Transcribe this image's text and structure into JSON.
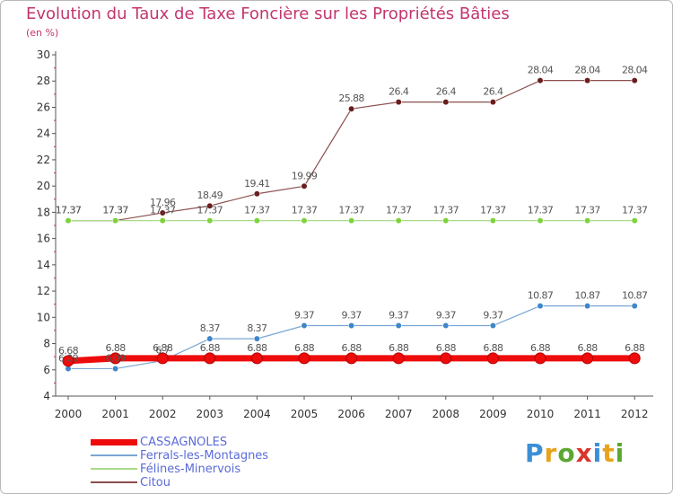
{
  "header": {
    "title": "Evolution du Taux de Taxe Foncière sur les Propriétés Bâties",
    "subtitle": "(en %)"
  },
  "logo": {
    "text": "Proxiti",
    "letter_colors": [
      "#3a8fd6",
      "#e8a31d",
      "#5aa832",
      "#d8362b",
      "#3a8fd6",
      "#e8a31d",
      "#5aa832"
    ]
  },
  "colors": {
    "title": "#c2356e",
    "axis": "#555555",
    "legend_text": "#5b6bd8"
  },
  "chart_data": {
    "type": "line",
    "title": "Evolution du Taux de Taxe Foncière sur les Propriétés Bâties",
    "ylabel": "(en %)",
    "xlabel": "",
    "x": [
      "2000",
      "2001",
      "2002",
      "2003",
      "2004",
      "2005",
      "2006",
      "2007",
      "2008",
      "2009",
      "2010",
      "2011",
      "2012"
    ],
    "ylim": [
      4,
      30
    ],
    "yticks": [
      4,
      6,
      8,
      10,
      12,
      14,
      16,
      18,
      20,
      22,
      24,
      26,
      28,
      30
    ],
    "grid": false,
    "legend_position": "bottom-left",
    "series": [
      {
        "name": "CASSAGNOLES",
        "color": "#ee0b0b",
        "marker": "#ee0b0b",
        "values": [
          6.68,
          6.88,
          6.88,
          6.88,
          6.88,
          6.88,
          6.88,
          6.88,
          6.88,
          6.88,
          6.88,
          6.88,
          6.88
        ],
        "labels": [
          "6.68",
          "6.88",
          "6.88",
          "6.88",
          "6.88",
          "6.88",
          "6.88",
          "6.88",
          "6.88",
          "6.88",
          "6.88",
          "6.88",
          "6.88"
        ]
      },
      {
        "name": "Ferrals-les-Montagnes",
        "color": "#7aa6d4",
        "marker": "#3f86c9",
        "values": [
          6.09,
          6.09,
          6.7,
          8.37,
          8.37,
          9.37,
          9.37,
          9.37,
          9.37,
          9.37,
          10.87,
          10.87,
          10.87
        ],
        "labels": [
          "6.09",
          "6.09",
          "6.7",
          "8.37",
          "8.37",
          "9.37",
          "9.37",
          "9.37",
          "9.37",
          "9.37",
          "10.87",
          "10.87",
          "10.87"
        ]
      },
      {
        "name": "Félines-Minervois",
        "color": "#a9d98b",
        "marker": "#7ed23c",
        "values": [
          17.37,
          17.37,
          17.37,
          17.37,
          17.37,
          17.37,
          17.37,
          17.37,
          17.37,
          17.37,
          17.37,
          17.37,
          17.37
        ],
        "labels": [
          "17.37",
          "17.37",
          "17.37",
          "17.37",
          "17.37",
          "17.37",
          "17.37",
          "17.37",
          "17.37",
          "17.37",
          "17.37",
          "17.37",
          "17.37"
        ]
      },
      {
        "name": "Citou",
        "color": "#8b4f4f",
        "marker": "#6b1d1d",
        "values": [
          17.37,
          17.37,
          17.96,
          18.49,
          19.41,
          19.99,
          25.88,
          26.4,
          26.4,
          26.4,
          28.04,
          28.04,
          28.04
        ],
        "labels": [
          "17.37",
          "17.37",
          "17.96",
          "18.49",
          "19.41",
          "19.99",
          "25.88",
          "26.4",
          "26.4",
          "26.4",
          "28.04",
          "28.04",
          "28.04"
        ]
      }
    ]
  }
}
